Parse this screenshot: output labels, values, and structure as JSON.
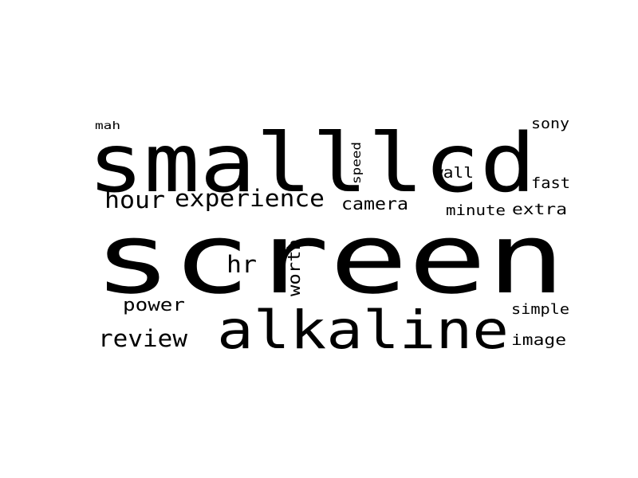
{
  "words": {
    "screen": "screen",
    "smalllcd": "smalllcd",
    "alkaline": "alkaline",
    "experience": "experience",
    "hour": "hour",
    "review": "review",
    "camera": "camera",
    "power": "power",
    "hr": "hr",
    "worth": "worth",
    "speed": "speed",
    "wall": "wall",
    "minute": "minute",
    "extra": "extra",
    "fast": "fast",
    "sony": "sony",
    "mah": "mah",
    "simple": "simple",
    "image": "image"
  },
  "colors": {
    "text": "#000000",
    "background": "#ffffff"
  }
}
